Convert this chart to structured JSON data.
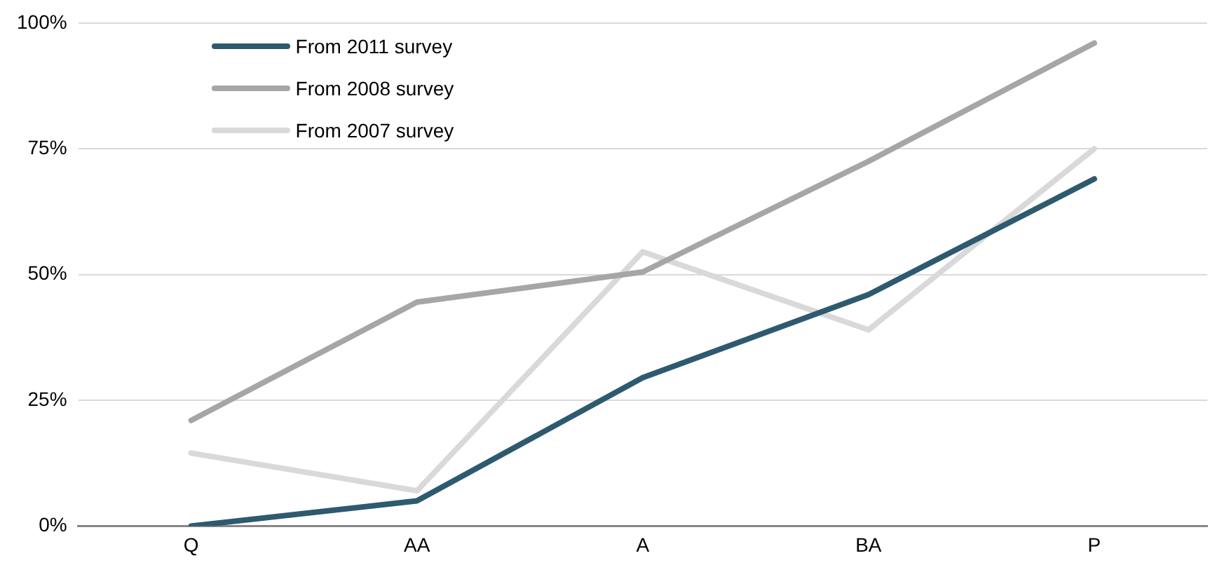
{
  "chart_data": {
    "type": "line",
    "categories": [
      "Q",
      "AA",
      "A",
      "BA",
      "P"
    ],
    "series": [
      {
        "name": "From 2011 survey",
        "color": "#2e5a70",
        "values": [
          0,
          5,
          29.5,
          46,
          69
        ]
      },
      {
        "name": "From 2008 survey",
        "color": "#a6a6a6",
        "values": [
          21,
          44.5,
          50.5,
          72.5,
          96
        ]
      },
      {
        "name": "From 2007 survey",
        "color": "#d9d9d9",
        "values": [
          14.5,
          7,
          54.5,
          39,
          75
        ]
      }
    ],
    "ylim": [
      0,
      100
    ],
    "yticks": [
      {
        "value": 0,
        "label": "0%"
      },
      {
        "value": 25,
        "label": "25%"
      },
      {
        "value": 50,
        "label": "50%"
      },
      {
        "value": 75,
        "label": "75%"
      },
      {
        "value": 100,
        "label": "100%"
      }
    ],
    "grid": "y",
    "legend": "top left",
    "marker": "none",
    "line_style": "solid"
  }
}
